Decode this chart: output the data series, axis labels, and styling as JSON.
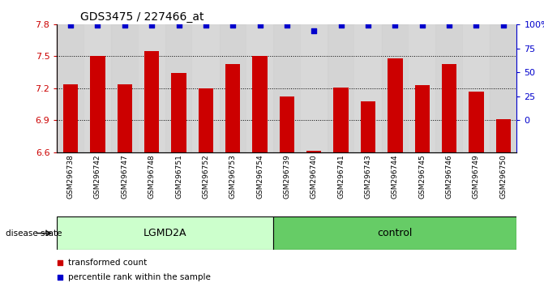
{
  "title": "GDS3475 / 227466_at",
  "samples": [
    "GSM296738",
    "GSM296742",
    "GSM296747",
    "GSM296748",
    "GSM296751",
    "GSM296752",
    "GSM296753",
    "GSM296754",
    "GSM296739",
    "GSM296740",
    "GSM296741",
    "GSM296743",
    "GSM296744",
    "GSM296745",
    "GSM296746",
    "GSM296749",
    "GSM296750"
  ],
  "bar_values": [
    7.24,
    7.5,
    7.24,
    7.55,
    7.34,
    7.2,
    7.43,
    7.5,
    7.12,
    6.61,
    7.21,
    7.08,
    7.48,
    7.23,
    7.43,
    7.17,
    6.91
  ],
  "percentile_values": [
    99,
    99,
    99,
    99,
    99,
    99,
    99,
    99,
    99,
    93,
    99,
    99,
    99,
    99,
    99,
    99,
    99
  ],
  "lgmd_count": 8,
  "ylim": [
    6.6,
    7.8
  ],
  "yticks": [
    6.6,
    6.9,
    7.2,
    7.5,
    7.8
  ],
  "right_yticks": [
    0,
    25,
    50,
    75,
    100
  ],
  "right_ytick_labels": [
    "0",
    "25",
    "50",
    "75",
    "100%"
  ],
  "bar_color": "#cc0000",
  "dot_color": "#0000cc",
  "bar_width": 0.55,
  "disease_state_label": "disease state",
  "lgmd_color": "#ccffcc",
  "ctrl_color": "#66cc66",
  "lgmd_label": "LGMD2A",
  "ctrl_label": "control"
}
